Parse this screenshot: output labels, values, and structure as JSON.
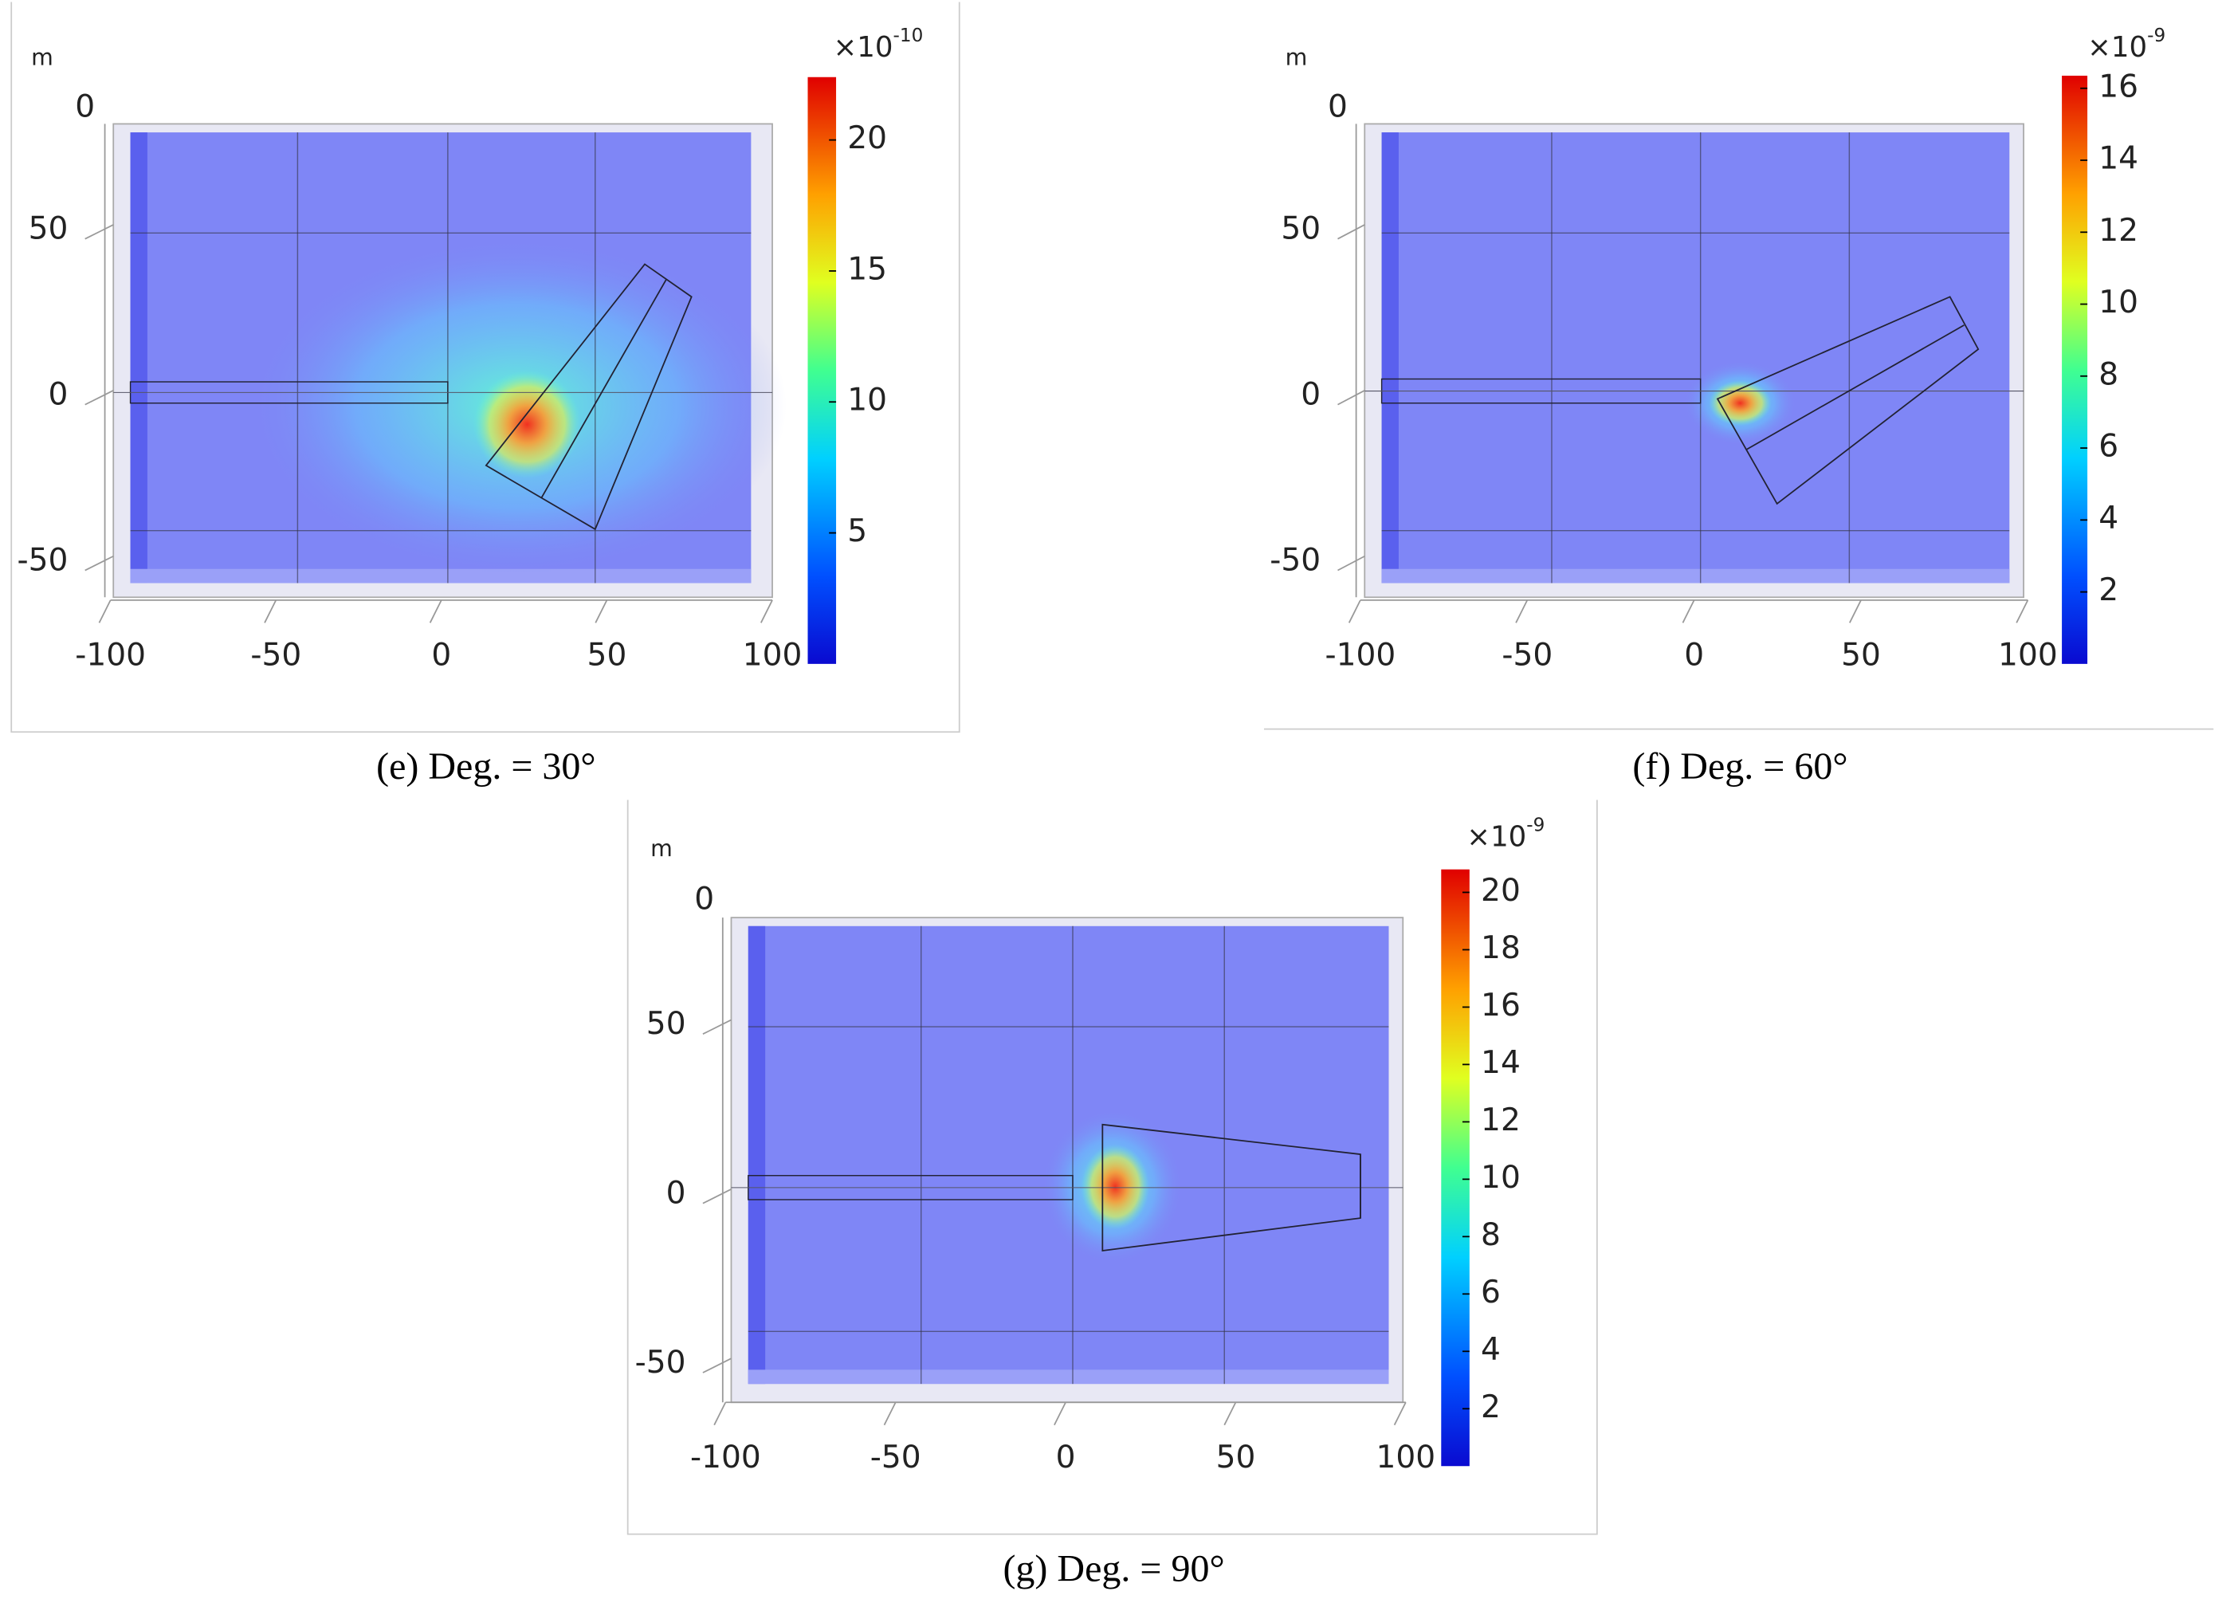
{
  "chart_data": [
    {
      "type": "heatmap",
      "unit": "m",
      "xlim": [
        -100,
        100
      ],
      "xticks": [
        -100,
        -50,
        0,
        50,
        100
      ],
      "ylim": [
        -55,
        80
      ],
      "yticks": [
        50,
        0,
        -50
      ],
      "zticks": [
        0
      ],
      "colorbar": {
        "lim": [
          0,
          22.4
        ],
        "ticks": [
          5,
          10,
          15,
          20
        ],
        "scale_prefix": "×10",
        "scale_exponent": "-10"
      },
      "caption": "(e) Deg. = 30°"
    },
    {
      "type": "heatmap",
      "unit": "m",
      "xlim": [
        -100,
        100
      ],
      "xticks": [
        -100,
        -50,
        0,
        50,
        100
      ],
      "ylim": [
        -55,
        80
      ],
      "yticks": [
        50,
        0,
        -50
      ],
      "zticks": [
        0
      ],
      "colorbar": {
        "lim": [
          0,
          16.35
        ],
        "ticks": [
          2,
          4,
          6,
          8,
          10,
          12,
          14,
          16
        ],
        "scale_prefix": "×10",
        "scale_exponent": "-9"
      },
      "caption": "(f) Deg. = 60°"
    },
    {
      "type": "heatmap",
      "unit": "m",
      "xlim": [
        -100,
        100
      ],
      "xticks": [
        -100,
        -50,
        0,
        50,
        100
      ],
      "ylim": [
        -55,
        80
      ],
      "yticks": [
        50,
        0,
        -50
      ],
      "zticks": [
        0
      ],
      "colorbar": {
        "lim": [
          0,
          20.8
        ],
        "ticks": [
          2,
          4,
          6,
          8,
          10,
          12,
          14,
          16,
          18,
          20
        ],
        "scale_prefix": "×10",
        "scale_exponent": "-9"
      },
      "caption": "(g) Deg. = 90°"
    }
  ]
}
